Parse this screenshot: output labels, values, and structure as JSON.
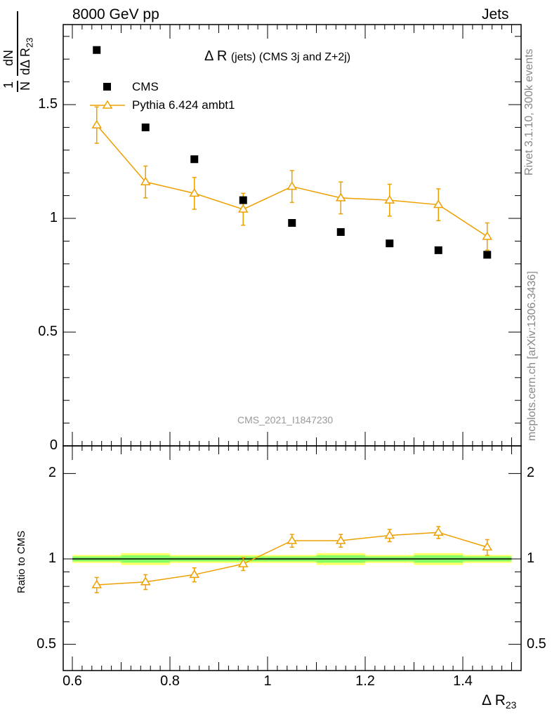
{
  "header": {
    "left": "8000 GeV pp",
    "right": "Jets"
  },
  "side_labels": {
    "rivet": "Rivet 3.1.10,  300k events",
    "mcplots": "mcplots.cern.ch [arXiv:1306.3436]"
  },
  "watermark": "CMS_2021_I1847230",
  "colors": {
    "mc": "#eea000",
    "band_inner": "#66ff66",
    "band_outer": "#ffff66",
    "watermark": "#999999"
  },
  "chart_data": [
    {
      "type": "scatter",
      "panel": "main",
      "title_main": "Δ R",
      "title_sub": "(jets) (CMS 3j and Z+2j)",
      "ylabel": "1/N dN/dΔ R23",
      "ylim": [
        0,
        3.7
      ],
      "yticks": [
        "0",
        "0.5",
        "1",
        "1.5",
        "2",
        "2.5",
        "3",
        "3.5"
      ],
      "x": [
        0.65,
        0.75,
        0.85,
        0.95,
        1.05,
        1.15,
        1.25,
        1.35,
        1.45
      ],
      "series": [
        {
          "name": "CMS",
          "marker": "square",
          "values": [
            1.74,
            1.4,
            1.26,
            1.08,
            0.98,
            0.94,
            0.89,
            0.86,
            0.84
          ]
        },
        {
          "name": "Pythia 6.424 ambt1",
          "marker": "open-triangle",
          "values": [
            1.41,
            1.16,
            1.11,
            1.04,
            1.14,
            1.09,
            1.08,
            1.06,
            0.92
          ],
          "err": [
            0.08,
            0.07,
            0.07,
            0.07,
            0.07,
            0.07,
            0.07,
            0.07,
            0.06
          ]
        }
      ]
    },
    {
      "type": "line",
      "panel": "ratio",
      "ylabel": "Ratio to CMS",
      "xlabel": "Δ R23",
      "xlim": [
        0.6,
        1.5
      ],
      "ylim": [
        0.5,
        2.5
      ],
      "yticks": [
        "0.5",
        "1",
        "2"
      ],
      "xticks": [
        "0.6",
        "0.8",
        "1",
        "1.2",
        "1.4"
      ],
      "x": [
        0.65,
        0.75,
        0.85,
        0.95,
        1.05,
        1.15,
        1.25,
        1.35,
        1.45
      ],
      "series": [
        {
          "name": "Pythia 6.424 ambt1 / CMS",
          "values": [
            0.81,
            0.83,
            0.88,
            0.96,
            1.16,
            1.16,
            1.21,
            1.24,
            1.1
          ],
          "err": [
            0.05,
            0.05,
            0.05,
            0.05,
            0.06,
            0.06,
            0.06,
            0.06,
            0.07
          ]
        }
      ],
      "band_halfwidth": [
        0.02,
        0.03,
        0.02,
        0.02,
        0.02,
        0.03,
        0.02,
        0.03,
        0.02
      ]
    }
  ]
}
